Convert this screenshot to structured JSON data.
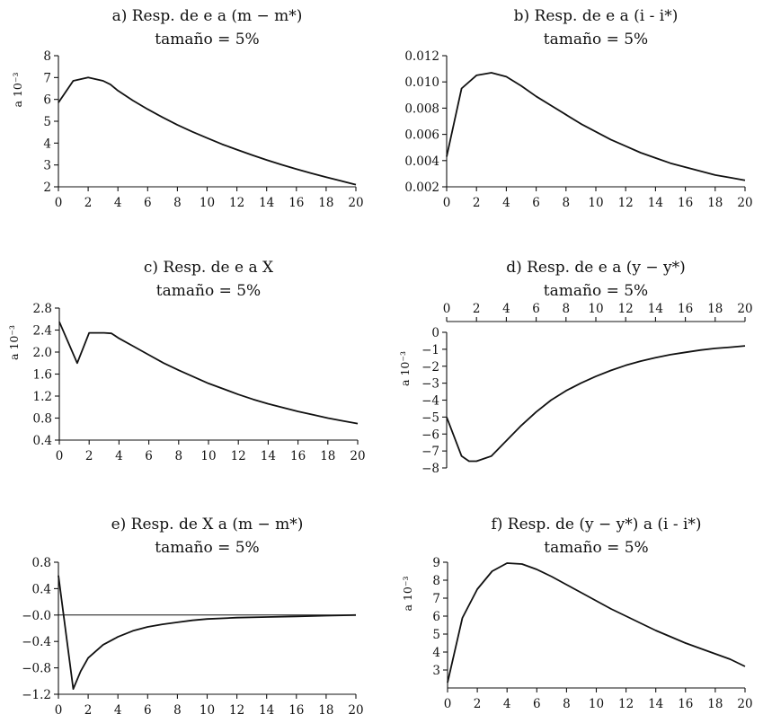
{
  "chart_data": [
    {
      "type": "line",
      "title": "a)  Resp. de e a (m − m*)",
      "subtitle": "tamaño = 5%",
      "ylabel": "a 10⁻³",
      "xlim": [
        0,
        20
      ],
      "ylim": [
        2,
        8
      ],
      "xticks": [
        "0",
        "2",
        "4",
        "6",
        "8",
        "10",
        "12",
        "14",
        "16",
        "18",
        "20"
      ],
      "yticks": [
        "2",
        "3",
        "4",
        "5",
        "6",
        "7",
        "8"
      ],
      "x_axis_position": "bottom",
      "zero_line": false,
      "series": [
        {
          "name": "respuesta",
          "x": [
            0,
            1,
            2,
            3,
            3.5,
            4,
            5,
            6,
            7,
            8,
            9,
            10,
            11,
            12,
            13,
            14,
            15,
            16,
            17,
            18,
            19,
            20
          ],
          "values": [
            5.85,
            6.85,
            7.0,
            6.85,
            6.68,
            6.4,
            5.95,
            5.55,
            5.18,
            4.83,
            4.52,
            4.23,
            3.95,
            3.7,
            3.46,
            3.23,
            3.01,
            2.81,
            2.62,
            2.44,
            2.27,
            2.1
          ]
        }
      ]
    },
    {
      "type": "line",
      "title": "b)  Resp. de e a (i - i*)",
      "subtitle": "tamaño = 5%",
      "ylabel": "",
      "xlim": [
        0,
        20
      ],
      "ylim": [
        0.002,
        0.012
      ],
      "xticks": [
        "0",
        "2",
        "4",
        "6",
        "8",
        "10",
        "12",
        "14",
        "16",
        "18",
        "20"
      ],
      "yticks": [
        "0.002",
        "0.004",
        "0.006",
        "0.008",
        "0.010",
        "0.012"
      ],
      "x_axis_position": "bottom",
      "zero_line": false,
      "series": [
        {
          "name": "respuesta",
          "x": [
            0,
            1,
            2,
            3,
            4,
            5,
            6,
            7,
            8,
            9,
            10,
            11,
            12,
            13,
            14,
            15,
            16,
            17,
            18,
            19,
            20
          ],
          "values": [
            0.0043,
            0.0095,
            0.0105,
            0.0107,
            0.0104,
            0.0097,
            0.0089,
            0.0082,
            0.0075,
            0.0068,
            0.0062,
            0.0056,
            0.0051,
            0.0046,
            0.0042,
            0.0038,
            0.0035,
            0.0032,
            0.0029,
            0.0027,
            0.0025
          ]
        }
      ]
    },
    {
      "type": "line",
      "title": "c)  Resp. de e a X",
      "subtitle": "tamaño = 5%",
      "ylabel": "a 10⁻³",
      "xlim": [
        0,
        20
      ],
      "ylim": [
        0.4,
        2.8
      ],
      "xticks": [
        "0",
        "2",
        "4",
        "6",
        "8",
        "10",
        "12",
        "14",
        "16",
        "18",
        "20"
      ],
      "yticks": [
        "0.4",
        "0.8",
        "1.2",
        "1.6",
        "2.0",
        "2.4",
        "2.8"
      ],
      "x_axis_position": "bottom",
      "zero_line": false,
      "series": [
        {
          "name": "respuesta",
          "x": [
            0,
            1.2,
            2,
            3,
            3.5,
            4,
            5,
            6,
            7,
            8,
            9,
            10,
            11,
            12,
            13,
            14,
            15,
            16,
            17,
            18,
            19,
            20
          ],
          "values": [
            2.55,
            1.8,
            2.35,
            2.35,
            2.34,
            2.25,
            2.1,
            1.95,
            1.8,
            1.67,
            1.55,
            1.43,
            1.33,
            1.23,
            1.14,
            1.06,
            0.99,
            0.92,
            0.86,
            0.8,
            0.75,
            0.7
          ]
        }
      ]
    },
    {
      "type": "line",
      "title": "d)  Resp. de e a (y − y*)",
      "subtitle": "tamaño = 5%",
      "ylabel": "a 10⁻³",
      "xlim": [
        0,
        20
      ],
      "ylim": [
        -8,
        0
      ],
      "xticks": [
        "0",
        "2",
        "4",
        "6",
        "8",
        "10",
        "12",
        "14",
        "16",
        "18",
        "20"
      ],
      "yticks": [
        "−8",
        "−7",
        "−6",
        "−5",
        "−4",
        "−3",
        "−2",
        "−1",
        "0"
      ],
      "x_axis_position": "top",
      "zero_line": false,
      "series": [
        {
          "name": "respuesta",
          "x": [
            0,
            1,
            1.5,
            2,
            3,
            4,
            5,
            6,
            7,
            8,
            9,
            10,
            11,
            12,
            13,
            14,
            15,
            16,
            17,
            18,
            19,
            20
          ],
          "values": [
            -5.0,
            -7.3,
            -7.6,
            -7.6,
            -7.3,
            -6.4,
            -5.5,
            -4.7,
            -4.0,
            -3.45,
            -3.0,
            -2.6,
            -2.25,
            -1.95,
            -1.7,
            -1.5,
            -1.32,
            -1.18,
            -1.05,
            -0.95,
            -0.88,
            -0.8
          ]
        }
      ]
    },
    {
      "type": "line",
      "title": "e)  Resp. de X a (m − m*)",
      "subtitle": "tamaño = 5%",
      "ylabel": "",
      "xlim": [
        0,
        20
      ],
      "ylim": [
        -1.2,
        0.8
      ],
      "xticks": [
        "0",
        "2",
        "4",
        "6",
        "8",
        "10",
        "12",
        "14",
        "16",
        "18",
        "20"
      ],
      "yticks": [
        "−1.2",
        "−0.8",
        "−0.4",
        "−0.0",
        "0.4",
        "0.8"
      ],
      "x_axis_position": "bottom",
      "zero_line": true,
      "series": [
        {
          "name": "respuesta",
          "x": [
            0,
            1,
            1.5,
            2,
            3,
            4,
            5,
            6,
            7,
            8,
            9,
            10,
            12,
            14,
            16,
            18,
            20
          ],
          "values": [
            0.6,
            -1.12,
            -0.85,
            -0.65,
            -0.45,
            -0.33,
            -0.24,
            -0.18,
            -0.14,
            -0.11,
            -0.08,
            -0.06,
            -0.04,
            -0.03,
            -0.02,
            -0.01,
            0.0
          ]
        }
      ]
    },
    {
      "type": "line",
      "title": "f)  Resp. de (y − y*) a (i - i*)",
      "subtitle": "tamaño = 5%",
      "ylabel": "a 10⁻³",
      "xlim": [
        0,
        20
      ],
      "ylim": [
        2,
        9
      ],
      "xticks": [
        "0",
        "2",
        "4",
        "6",
        "8",
        "10",
        "12",
        "14",
        "16",
        "18",
        "20"
      ],
      "yticks": [
        "3",
        "4",
        "5",
        "6",
        "7",
        "8",
        "9"
      ],
      "x_axis_position": "bottom",
      "zero_line": false,
      "series": [
        {
          "name": "respuesta",
          "x": [
            0,
            1,
            2,
            3,
            4,
            5,
            6,
            7,
            8,
            9,
            10,
            11,
            12,
            13,
            14,
            15,
            16,
            17,
            18,
            19,
            20
          ],
          "values": [
            2.3,
            5.9,
            7.5,
            8.5,
            8.95,
            8.9,
            8.6,
            8.2,
            7.75,
            7.3,
            6.85,
            6.4,
            6.0,
            5.6,
            5.2,
            4.85,
            4.5,
            4.2,
            3.9,
            3.6,
            3.2
          ]
        }
      ]
    }
  ]
}
